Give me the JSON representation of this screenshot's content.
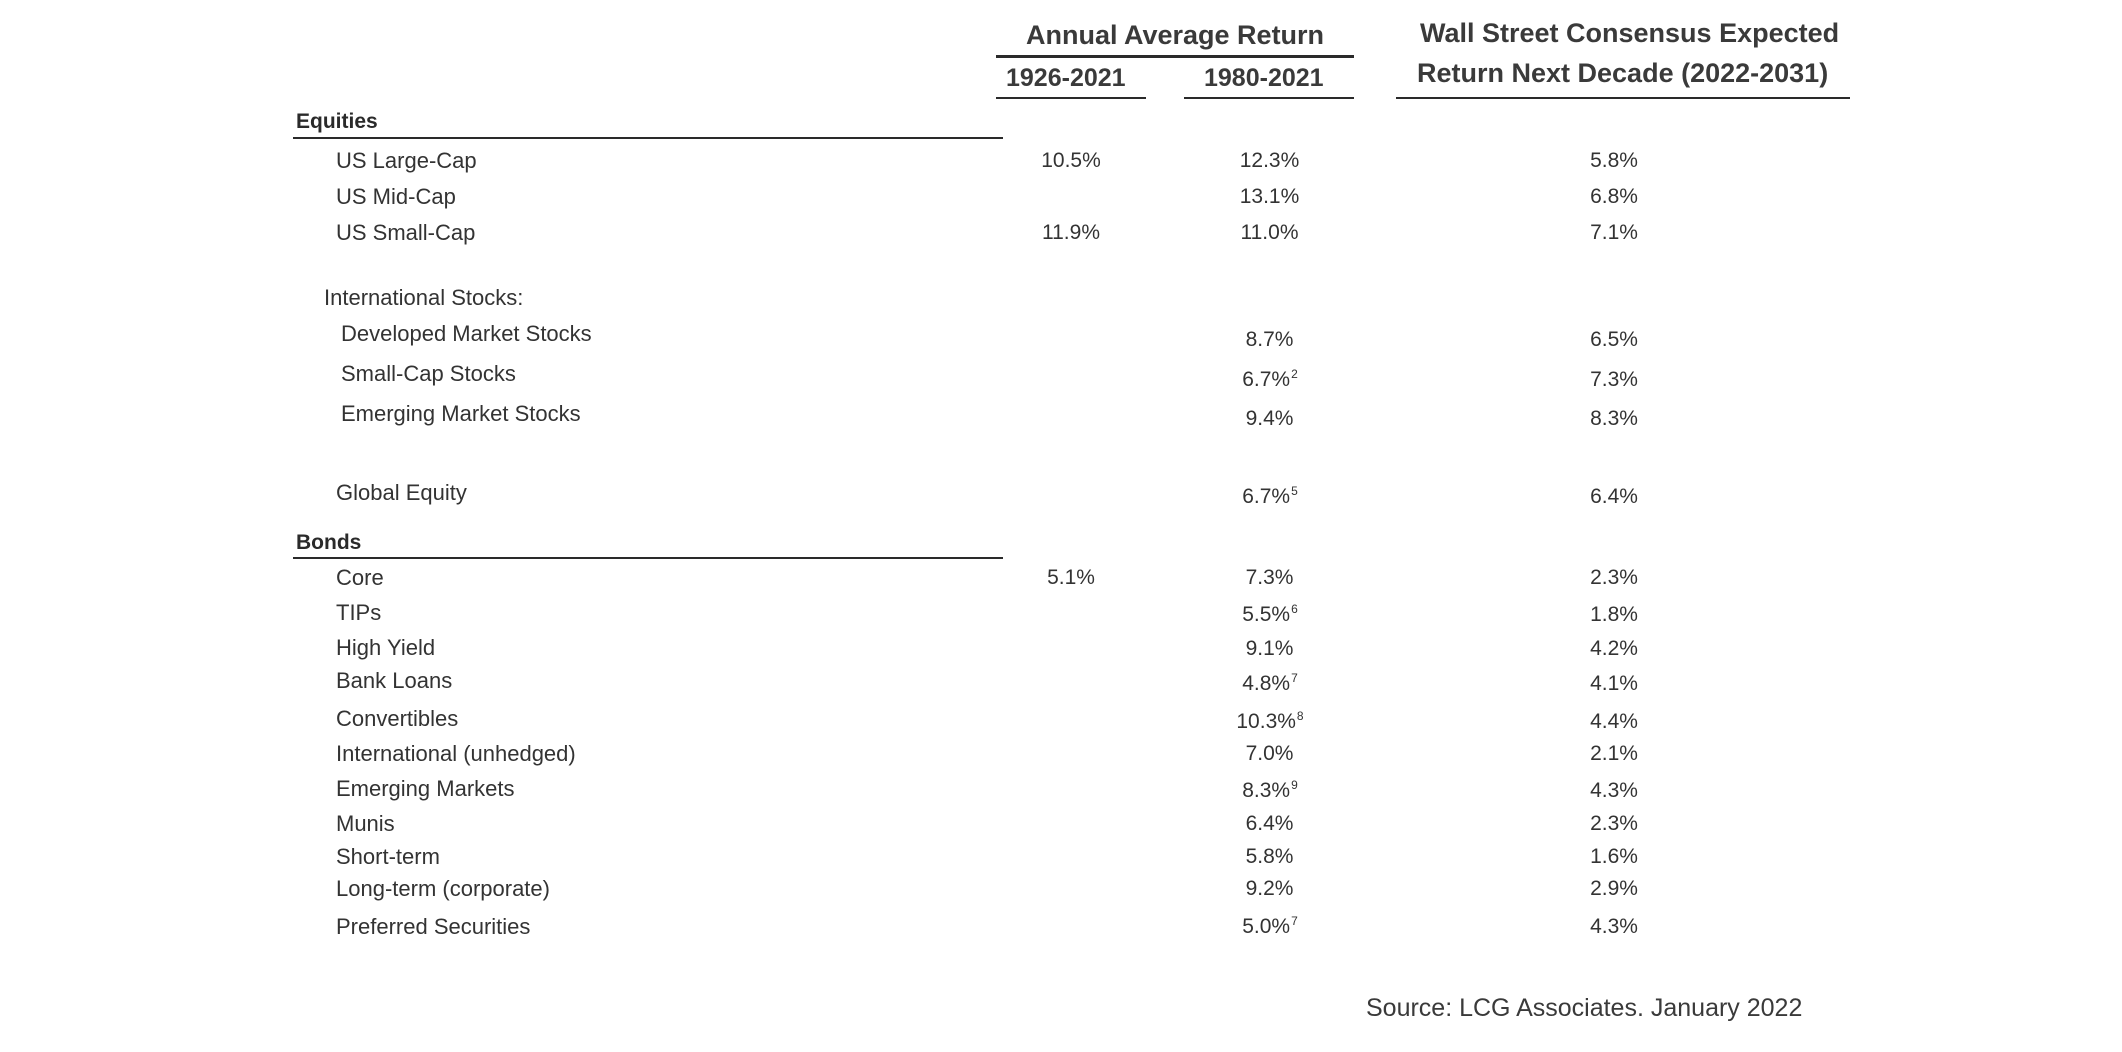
{
  "header": {
    "group_title": "Annual Average Return",
    "col_a": "1926-2021",
    "col_b": "1980-2021",
    "col_c_line1": "Wall Street Consensus Expected",
    "col_c_line2": "Return Next Decade (2022-2031)"
  },
  "sections": {
    "equities": "Equities",
    "intl": "International Stocks:",
    "bonds": "Bonds"
  },
  "rows": [
    {
      "label": "US Large-Cap",
      "a": "10.5%",
      "b": "12.3%",
      "b_note": "",
      "c": "5.8%"
    },
    {
      "label": "US Mid-Cap",
      "a": "",
      "b": "13.1%",
      "b_note": "",
      "c": "6.8%"
    },
    {
      "label": "US Small-Cap",
      "a": "11.9%",
      "b": "11.0%",
      "b_note": "",
      "c": "7.1%"
    },
    {
      "label": "Developed Market Stocks",
      "a": "",
      "b": "8.7%",
      "b_note": "",
      "c": "6.5%"
    },
    {
      "label": "Small-Cap Stocks",
      "a": "",
      "b": "6.7%",
      "b_note": "2",
      "c": "7.3%"
    },
    {
      "label": "Emerging Market Stocks",
      "a": "",
      "b": "9.4%",
      "b_note": "",
      "c": "8.3%"
    },
    {
      "label": "Global Equity",
      "a": "",
      "b": "6.7%",
      "b_note": "5",
      "c": "6.4%"
    },
    {
      "label": "Core",
      "a": "5.1%",
      "b": "7.3%",
      "b_note": "",
      "c": "2.3%"
    },
    {
      "label": "TIPs",
      "a": "",
      "b": "5.5%",
      "b_note": "6",
      "c": "1.8%"
    },
    {
      "label": "High Yield",
      "a": "",
      "b": "9.1%",
      "b_note": "",
      "c": "4.2%"
    },
    {
      "label": "Bank Loans",
      "a": "",
      "b": "4.8%",
      "b_note": "7",
      "c": "4.1%"
    },
    {
      "label": "Convertibles",
      "a": "",
      "b": "10.3%",
      "b_note": "8",
      "c": "4.4%"
    },
    {
      "label": "International (unhedged)",
      "a": "",
      "b": "7.0%",
      "b_note": "",
      "c": "2.1%"
    },
    {
      "label": "Emerging Markets",
      "a": "",
      "b": "8.3%",
      "b_note": "9",
      "c": "4.3%"
    },
    {
      "label": "Munis",
      "a": "",
      "b": "6.4%",
      "b_note": "",
      "c": "2.3%"
    },
    {
      "label": "Short-term",
      "a": "",
      "b": "5.8%",
      "b_note": "",
      "c": "1.6%"
    },
    {
      "label": "Long-term (corporate)",
      "a": "",
      "b": "9.2%",
      "b_note": "",
      "c": "2.9%"
    },
    {
      "label": "Preferred Securities",
      "a": "",
      "b": "5.0%",
      "b_note": "7",
      "c": "4.3%"
    }
  ],
  "source": "Source: LCG Associates. January 2022"
}
